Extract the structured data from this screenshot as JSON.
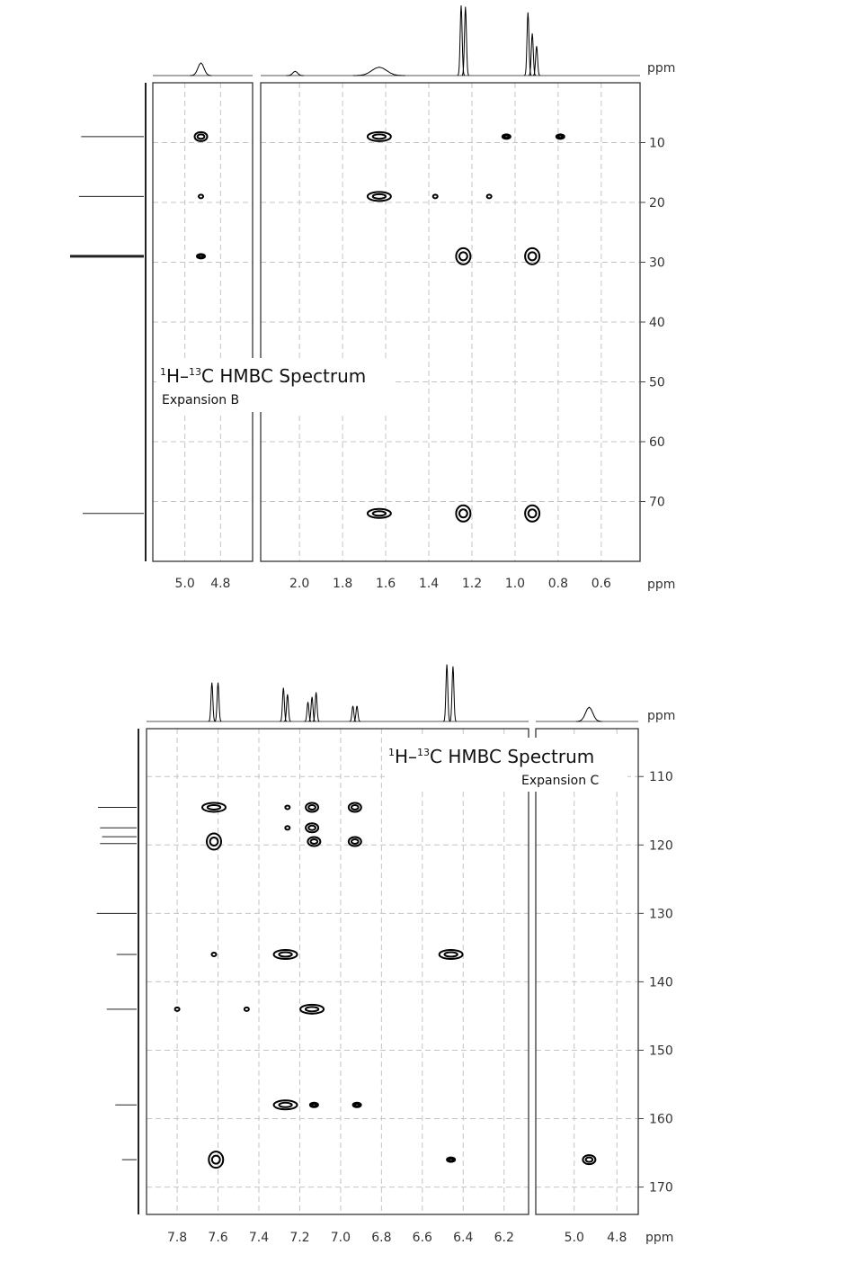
{
  "chart_data": [
    {
      "type": "scatter",
      "name": "",
      "title": "1H–13C HMBC Spectrum",
      "title_parts": {
        "sup1": "1",
        "a": "H–",
        "sup2": "13",
        "b": "C HMBC Spectrum"
      },
      "subtitle": "Expansion B",
      "x_unit": "ppm",
      "y_unit": "ppm",
      "panels": [
        {
          "name": "left",
          "xlim": [
            5.18,
            4.62
          ],
          "xticks": [
            5.0,
            4.8
          ],
          "tick_labels": [
            "5.0",
            "4.8"
          ]
        },
        {
          "name": "right",
          "xlim": [
            2.18,
            0.42
          ],
          "xticks": [
            2.0,
            1.8,
            1.6,
            1.4,
            1.2,
            1.0,
            0.8,
            0.6
          ],
          "tick_labels": [
            "2.0",
            "1.8",
            "1.6",
            "1.4",
            "1.2",
            "1.0",
            "0.8",
            "0.6"
          ]
        }
      ],
      "ylim": [
        0,
        80
      ],
      "yticks": [
        10,
        20,
        30,
        40,
        50,
        60,
        70
      ],
      "ytick_labels": [
        "10",
        "20",
        "30",
        "40",
        "50",
        "60",
        "70"
      ],
      "grid": true,
      "proton_projection": [
        {
          "ppm": 4.91,
          "height": 0.18,
          "width": 0.03
        },
        {
          "ppm": 2.02,
          "height": 0.06,
          "width": 0.02
        },
        {
          "ppm": 1.63,
          "height": 0.12,
          "width": 0.06
        },
        {
          "ppm": 1.25,
          "height": 1.0,
          "width": 0.008
        },
        {
          "ppm": 1.23,
          "height": 0.98,
          "width": 0.008
        },
        {
          "ppm": 0.94,
          "height": 0.9,
          "width": 0.008
        },
        {
          "ppm": 0.92,
          "height": 0.6,
          "width": 0.008
        },
        {
          "ppm": 0.9,
          "height": 0.42,
          "width": 0.008
        }
      ],
      "carbon_projection": [
        {
          "ppm": 9,
          "height": 0.85
        },
        {
          "ppm": 19,
          "height": 0.88
        },
        {
          "ppm": 29,
          "height": 1.0
        },
        {
          "ppm": 72,
          "height": 0.83
        }
      ],
      "crosspeaks": [
        {
          "x": 4.91,
          "y": 9,
          "size": "m"
        },
        {
          "x": 4.91,
          "y": 19,
          "size": "xs"
        },
        {
          "x": 4.91,
          "y": 29,
          "size": "s"
        },
        {
          "x": 1.63,
          "y": 9,
          "size": "l"
        },
        {
          "x": 1.04,
          "y": 9,
          "size": "s"
        },
        {
          "x": 0.79,
          "y": 9,
          "size": "s"
        },
        {
          "x": 1.63,
          "y": 19,
          "size": "l"
        },
        {
          "x": 1.37,
          "y": 19,
          "size": "xs"
        },
        {
          "x": 1.12,
          "y": 19,
          "size": "xs"
        },
        {
          "x": 1.24,
          "y": 29,
          "size": "xl"
        },
        {
          "x": 0.92,
          "y": 29,
          "size": "xl"
        },
        {
          "x": 1.63,
          "y": 72,
          "size": "l"
        },
        {
          "x": 1.24,
          "y": 72,
          "size": "xl"
        },
        {
          "x": 0.92,
          "y": 72,
          "size": "xl"
        }
      ]
    },
    {
      "type": "scatter",
      "name": "",
      "title": "1H–13C HMBC Spectrum",
      "title_parts": {
        "sup1": "1",
        "a": "H–",
        "sup2": "13",
        "b": "C HMBC Spectrum"
      },
      "subtitle": "Expansion C",
      "x_unit": "ppm",
      "y_unit": "ppm",
      "panels": [
        {
          "name": "left",
          "xlim": [
            7.95,
            6.08
          ],
          "xticks": [
            7.8,
            7.6,
            7.4,
            7.2,
            7.0,
            6.8,
            6.6,
            6.4,
            6.2
          ],
          "tick_labels": [
            "7.8",
            "7.6",
            "7.4",
            "7.2",
            "7.0",
            "6.8",
            "6.6",
            "6.4",
            "6.2"
          ]
        },
        {
          "name": "right",
          "xlim": [
            5.18,
            4.7
          ],
          "xticks": [
            5.0,
            4.8
          ],
          "tick_labels": [
            "5.0",
            "4.8"
          ]
        }
      ],
      "ylim": [
        103,
        174
      ],
      "yticks": [
        110,
        120,
        130,
        140,
        150,
        160,
        170
      ],
      "ytick_labels": [
        "110",
        "120",
        "130",
        "140",
        "150",
        "160",
        "170"
      ],
      "grid": true,
      "proton_projection": [
        {
          "ppm": 7.63,
          "height": 0.6,
          "width": 0.008
        },
        {
          "ppm": 7.6,
          "height": 0.6,
          "width": 0.008
        },
        {
          "ppm": 7.28,
          "height": 0.52,
          "width": 0.008
        },
        {
          "ppm": 7.26,
          "height": 0.42,
          "width": 0.008
        },
        {
          "ppm": 7.16,
          "height": 0.3,
          "width": 0.008
        },
        {
          "ppm": 7.14,
          "height": 0.38,
          "width": 0.008
        },
        {
          "ppm": 7.12,
          "height": 0.45,
          "width": 0.008
        },
        {
          "ppm": 6.94,
          "height": 0.24,
          "width": 0.008
        },
        {
          "ppm": 6.92,
          "height": 0.24,
          "width": 0.008
        },
        {
          "ppm": 6.48,
          "height": 0.88,
          "width": 0.008
        },
        {
          "ppm": 6.45,
          "height": 0.85,
          "width": 0.008
        },
        {
          "ppm": 4.93,
          "height": 0.22,
          "width": 0.03
        }
      ],
      "carbon_projection": [
        {
          "ppm": 114.5,
          "height": 0.58
        },
        {
          "ppm": 117.5,
          "height": 0.55
        },
        {
          "ppm": 118.8,
          "height": 0.52
        },
        {
          "ppm": 119.8,
          "height": 0.55
        },
        {
          "ppm": 130,
          "height": 0.6
        },
        {
          "ppm": 136,
          "height": 0.3
        },
        {
          "ppm": 144,
          "height": 0.45
        },
        {
          "ppm": 158,
          "height": 0.32
        },
        {
          "ppm": 166,
          "height": 0.22
        }
      ],
      "crosspeaks": [
        {
          "x": 7.62,
          "y": 114.5,
          "size": "l"
        },
        {
          "x": 7.26,
          "y": 114.5,
          "size": "xs"
        },
        {
          "x": 7.14,
          "y": 114.5,
          "size": "m"
        },
        {
          "x": 6.93,
          "y": 114.5,
          "size": "m"
        },
        {
          "x": 7.26,
          "y": 117.5,
          "size": "xs"
        },
        {
          "x": 7.14,
          "y": 117.5,
          "size": "m"
        },
        {
          "x": 7.62,
          "y": 119.5,
          "size": "xl"
        },
        {
          "x": 7.13,
          "y": 119.5,
          "size": "m"
        },
        {
          "x": 6.93,
          "y": 119.5,
          "size": "m"
        },
        {
          "x": 7.62,
          "y": 136,
          "size": "xs"
        },
        {
          "x": 7.27,
          "y": 136,
          "size": "l"
        },
        {
          "x": 6.46,
          "y": 136,
          "size": "l"
        },
        {
          "x": 7.8,
          "y": 144,
          "size": "xs"
        },
        {
          "x": 7.46,
          "y": 144,
          "size": "xs"
        },
        {
          "x": 7.14,
          "y": 144,
          "size": "l"
        },
        {
          "x": 7.27,
          "y": 158,
          "size": "l"
        },
        {
          "x": 7.13,
          "y": 158,
          "size": "s"
        },
        {
          "x": 6.92,
          "y": 158,
          "size": "s"
        },
        {
          "x": 7.61,
          "y": 166,
          "size": "xl"
        },
        {
          "x": 6.46,
          "y": 166,
          "size": "s"
        },
        {
          "x": 4.93,
          "y": 166,
          "size": "m"
        }
      ]
    }
  ]
}
